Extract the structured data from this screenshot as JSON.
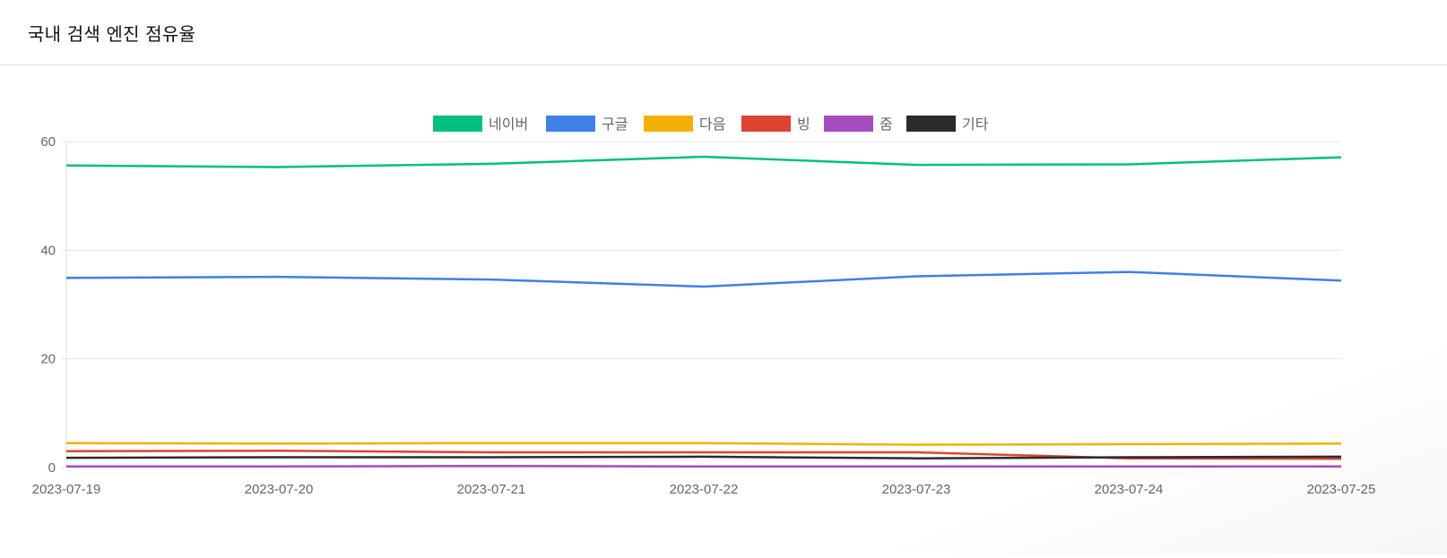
{
  "page": {
    "title": "국내 검색 엔진 점유율"
  },
  "chart_data": {
    "type": "line",
    "title": "",
    "xlabel": "",
    "ylabel": "",
    "x": [
      "2023-07-19",
      "2023-07-20",
      "2023-07-21",
      "2023-07-22",
      "2023-07-23",
      "2023-07-24",
      "2023-07-25"
    ],
    "ylim": [
      0,
      60
    ],
    "yticks": [
      0,
      20,
      40,
      60
    ],
    "grid": true,
    "legend_position": "top-center",
    "series": [
      {
        "name": "네이버",
        "color": "#00c07f",
        "values": [
          55.6,
          55.3,
          55.9,
          57.2,
          55.7,
          55.8,
          57.1
        ]
      },
      {
        "name": "구글",
        "color": "#3f80e7",
        "values": [
          34.9,
          35.1,
          34.6,
          33.3,
          35.2,
          36.0,
          34.4
        ]
      },
      {
        "name": "다음",
        "color": "#f4b000",
        "values": [
          4.5,
          4.4,
          4.5,
          4.5,
          4.2,
          4.3,
          4.4
        ]
      },
      {
        "name": "빙",
        "color": "#dd4433",
        "values": [
          3.0,
          3.1,
          2.8,
          2.8,
          2.8,
          1.7,
          1.6
        ]
      },
      {
        "name": "줌",
        "color": "#a64dbf",
        "values": [
          0.2,
          0.2,
          0.3,
          0.2,
          0.2,
          0.2,
          0.2
        ]
      },
      {
        "name": "기타",
        "color": "#2b2b2b",
        "values": [
          1.8,
          1.9,
          1.9,
          2.0,
          1.7,
          1.9,
          2.0
        ]
      }
    ]
  }
}
